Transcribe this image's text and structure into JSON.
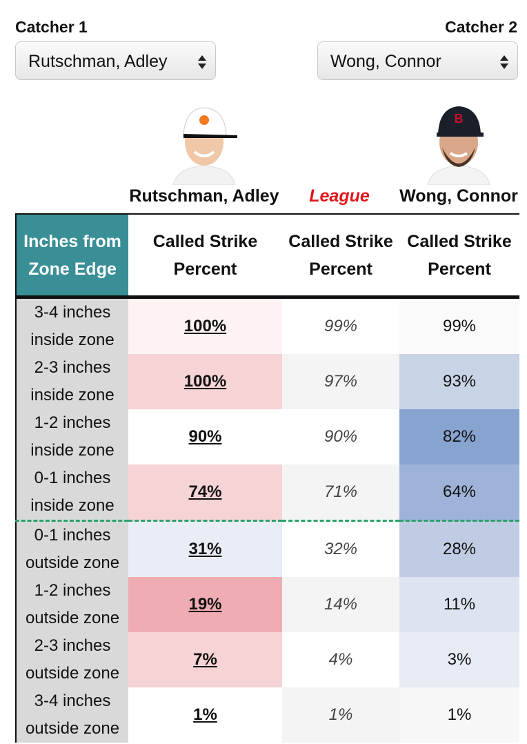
{
  "selectors": [
    {
      "label": "Catcher 1",
      "selected": "Rutschman, Adley"
    },
    {
      "label": "Catcher 2",
      "selected": "Wong, Connor"
    }
  ],
  "columns": {
    "player1": "Rutschman, Adley",
    "league": "League",
    "player2": "Wong, Connor"
  },
  "table": {
    "header": [
      "Inches from Zone Edge",
      "Called Strike Percent",
      "Called Strike Percent",
      "Called Strike Percent"
    ],
    "rows": [
      [
        "3-4 inches inside zone",
        "100%",
        "99%",
        "99%"
      ],
      [
        "2-3 inches inside zone",
        "100%",
        "97%",
        "93%"
      ],
      [
        "1-2 inches inside zone",
        "90%",
        "90%",
        "82%"
      ],
      [
        "0-1 inches inside zone",
        "74%",
        "71%",
        "64%"
      ],
      [
        "0-1 inches outside zone",
        "31%",
        "32%",
        "28%"
      ],
      [
        "1-2 inches outside zone",
        "19%",
        "14%",
        "11%"
      ],
      [
        "2-3 inches outside zone",
        "7%",
        "4%",
        "3%"
      ],
      [
        "3-4 inches outside zone",
        "1%",
        "1%",
        "1%"
      ]
    ]
  }
}
